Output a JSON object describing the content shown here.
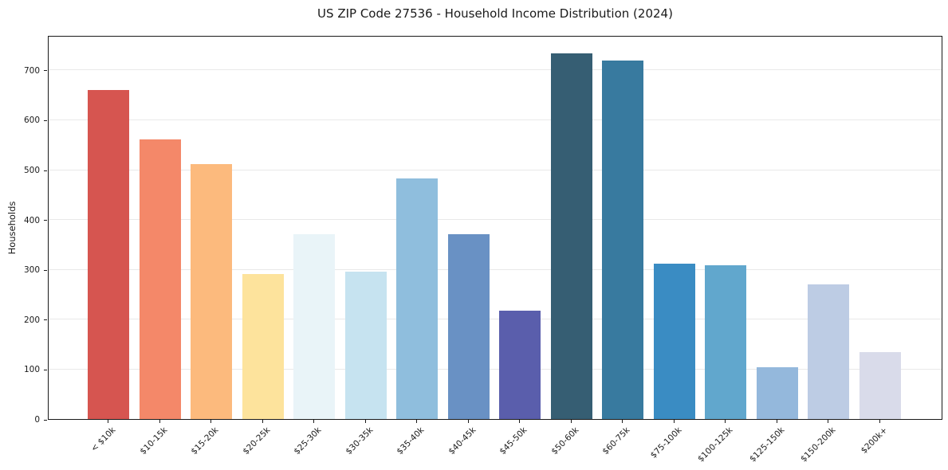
{
  "chart_data": {
    "type": "bar",
    "title": "US ZIP Code 27536 - Household Income Distribution (2024)",
    "xlabel": "",
    "ylabel": "Households",
    "categories": [
      "< $10k",
      "$10-15k",
      "$15-20k",
      "$20-25k",
      "$25-30k",
      "$30-35k",
      "$35-40k",
      "$40-45k",
      "$45-50k",
      "$50-60k",
      "$60-75k",
      "$75-100k",
      "$100-125k",
      "$125-150k",
      "$150-200k",
      "$200k+"
    ],
    "values": [
      659,
      561,
      511,
      291,
      370,
      295,
      483,
      371,
      217,
      734,
      719,
      311,
      308,
      104,
      270,
      134
    ],
    "bar_colors": [
      "#d65550",
      "#f48869",
      "#fcba7d",
      "#fde39c",
      "#e9f4f8",
      "#c6e3f0",
      "#8fbedd",
      "#6991c4",
      "#5a5eac",
      "#365e73",
      "#387a9f",
      "#3a8cc3",
      "#61a7cd",
      "#94b8dc",
      "#bdcce4",
      "#d9dbea"
    ],
    "y_ticks": [
      0,
      100,
      200,
      300,
      400,
      500,
      600,
      700
    ],
    "ylim": [
      0,
      770
    ],
    "grid": "horizontal-only",
    "legend": "none"
  },
  "colors": {
    "background": "#ffffff",
    "spine": "#1a1a1a",
    "gridline": "#e9e9e9",
    "text": "#1a1a1a"
  }
}
